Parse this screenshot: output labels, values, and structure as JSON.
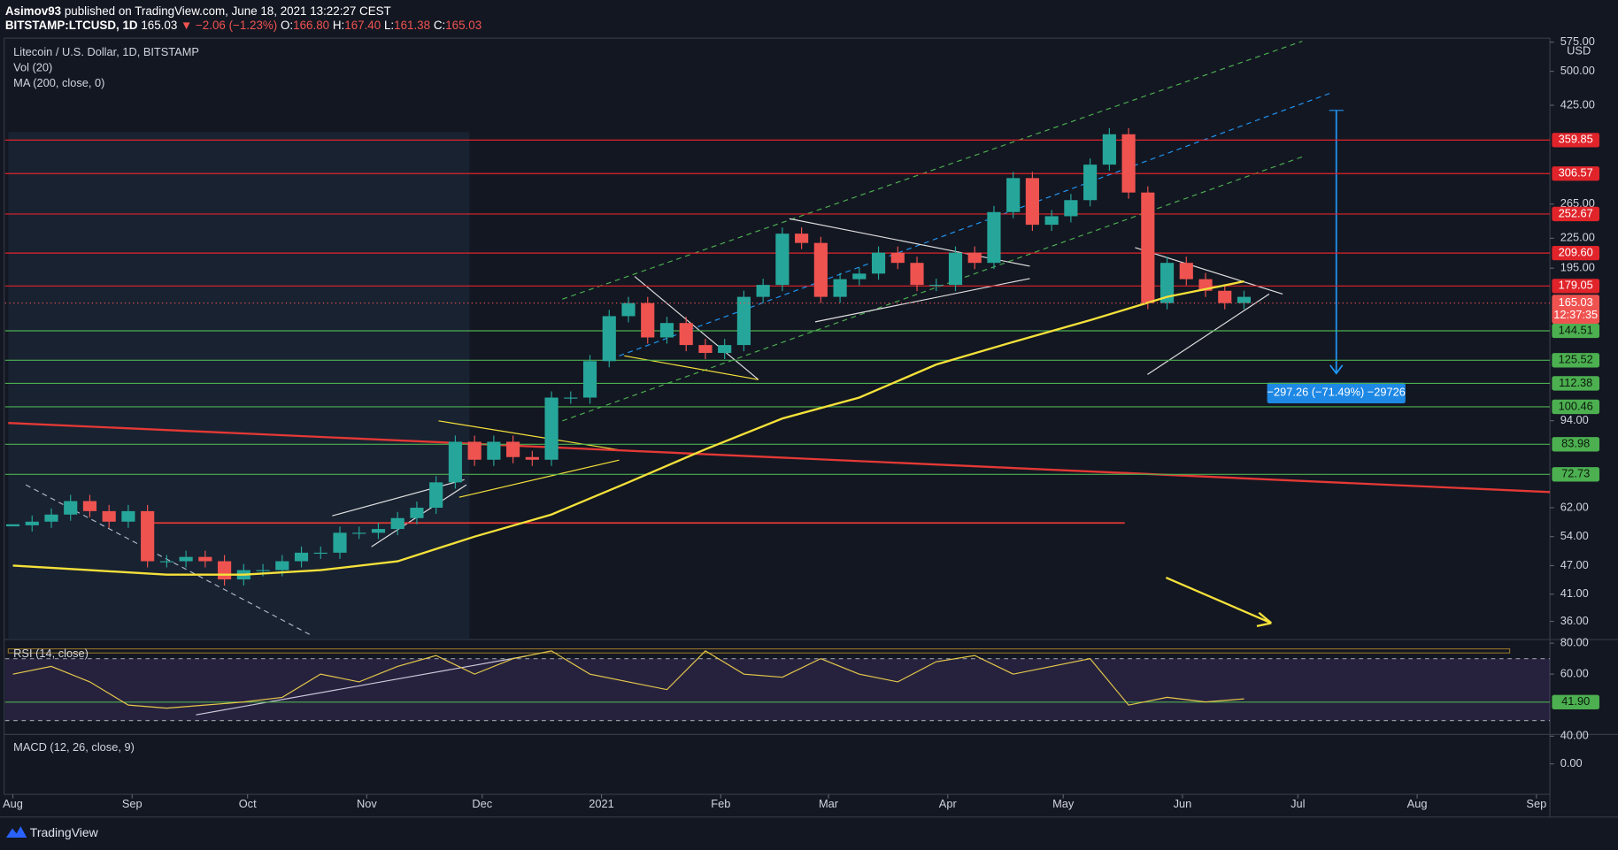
{
  "header": {
    "publisher": "Asimov93",
    "published": "published on TradingView.com, June 18, 2021 13:22:27 CEST",
    "symbol": "BITSTAMP:LTCUSD, 1D",
    "last": "165.03",
    "change": "▼ −2.06 (−1.23%)",
    "open_label": "O:",
    "open": "166.80",
    "high_label": "H:",
    "high": "167.40",
    "low_label": "L:",
    "low": "161.38",
    "close_label": "C:",
    "close": "165.03"
  },
  "chart_data": [
    {
      "type": "candlestick",
      "title": "Litecoin / U.S. Dollar, 1D, BITSTAMP",
      "subtitle": "Vol (20)",
      "currency": "USD",
      "log_scale": true,
      "up_color": "#26a69a",
      "down_color": "#ef5350",
      "x": [
        0,
        5,
        10,
        15,
        20,
        25,
        30,
        35,
        40,
        45,
        50,
        55,
        60,
        65,
        70,
        75,
        80,
        85,
        90,
        95,
        100,
        105,
        110,
        115,
        120,
        125,
        130,
        135,
        140,
        145,
        150,
        155,
        160,
        165,
        170,
        175,
        180,
        185,
        190,
        195,
        200,
        205,
        210,
        215,
        220,
        225,
        230,
        235,
        240,
        245,
        250,
        255,
        260,
        265,
        270,
        275,
        280,
        285,
        290,
        295,
        300,
        305,
        310,
        315,
        320
      ],
      "values": [
        57,
        58,
        60,
        64,
        61,
        58,
        61,
        48,
        48,
        49,
        48,
        44,
        46,
        46,
        48,
        50,
        50,
        55,
        55,
        56,
        59,
        62,
        70,
        85,
        78,
        85,
        79,
        78,
        105,
        105,
        125,
        155,
        165,
        140,
        150,
        135,
        130,
        135,
        170,
        180,
        230,
        220,
        170,
        185,
        190,
        210,
        200,
        180,
        180,
        210,
        200,
        255,
        300,
        240,
        250,
        270,
        320,
        370,
        280,
        165,
        200,
        185,
        175,
        165,
        170
      ],
      "ma": {
        "name": "MA (200, close, 0)",
        "color": "#f5e13a",
        "x": [
          0,
          20,
          40,
          60,
          80,
          100,
          120,
          140,
          160,
          180,
          200,
          220,
          240,
          260,
          280,
          300,
          320
        ],
        "values": [
          47,
          46,
          45,
          45,
          46,
          48,
          54,
          60,
          70,
          82,
          95,
          105,
          123,
          137,
          152,
          170,
          183
        ]
      },
      "xlim": [
        -2,
        399.5
      ],
      "ylim": [
        33,
        583
      ],
      "xticks": [
        {
          "value": 0,
          "label": "Aug"
        },
        {
          "value": 31,
          "label": "Sep"
        },
        {
          "value": 61,
          "label": "Oct"
        },
        {
          "value": 92,
          "label": "Nov"
        },
        {
          "value": 122,
          "label": "Dec"
        },
        {
          "value": 153,
          "label": "2021"
        },
        {
          "value": 184,
          "label": "Feb"
        },
        {
          "value": 212,
          "label": "Mar"
        },
        {
          "value": 243,
          "label": "Apr"
        },
        {
          "value": 273,
          "label": "May"
        },
        {
          "value": 304,
          "label": "Jun"
        },
        {
          "value": 334,
          "label": "Jul"
        },
        {
          "value": 365,
          "label": "Aug"
        },
        {
          "value": 396,
          "label": "Sep"
        }
      ],
      "yticks": [
        {
          "value": 575,
          "label": "575.00"
        },
        {
          "value": 500,
          "label": "500.00"
        },
        {
          "value": 425,
          "label": "425.00"
        },
        {
          "value": 265,
          "label": "265.00"
        },
        {
          "value": 225,
          "label": "225.00"
        },
        {
          "value": 195,
          "label": "195.00"
        },
        {
          "value": 94,
          "label": "94.00"
        },
        {
          "value": 62,
          "label": "62.00"
        },
        {
          "value": 54,
          "label": "54.00"
        },
        {
          "value": 47,
          "label": "47.00"
        },
        {
          "value": 41,
          "label": "41.00"
        },
        {
          "value": 36,
          "label": "36.00"
        }
      ],
      "levels": [
        {
          "value": 359.85,
          "label": "359.85",
          "color": "#e0242a"
        },
        {
          "value": 306.57,
          "label": "306.57",
          "color": "#e0242a"
        },
        {
          "value": 252.67,
          "label": "252.67",
          "color": "#e0242a"
        },
        {
          "value": 209.6,
          "label": "209.60",
          "color": "#e0242a"
        },
        {
          "value": 179.05,
          "label": "179.05",
          "color": "#e0242a"
        },
        {
          "value": 144.51,
          "label": "144.51",
          "color": "#4caf50"
        },
        {
          "value": 125.52,
          "label": "125.52",
          "color": "#4caf50"
        },
        {
          "value": 112.38,
          "label": "112.38",
          "color": "#4caf50"
        },
        {
          "value": 100.46,
          "label": "100.46",
          "color": "#4caf50"
        },
        {
          "value": 83.98,
          "label": "83.98",
          "color": "#4caf50"
        },
        {
          "value": 72.73,
          "label": "72.73",
          "color": "#4caf50"
        }
      ],
      "last_price": {
        "value": 165.03,
        "label": "165.03",
        "countdown": "12:37:35",
        "color": "#ef5350"
      },
      "measure": "−297.26 (−71.49%) −29726"
    },
    {
      "type": "line",
      "title": "RSI (14, close)",
      "color": "#e6c84a",
      "x": [
        0,
        10,
        20,
        30,
        40,
        50,
        60,
        70,
        80,
        90,
        100,
        110,
        120,
        130,
        140,
        150,
        160,
        170,
        180,
        190,
        200,
        210,
        220,
        230,
        240,
        250,
        260,
        270,
        280,
        290,
        300,
        310,
        320
      ],
      "values": [
        60,
        65,
        55,
        40,
        38,
        40,
        42,
        45,
        60,
        55,
        65,
        72,
        60,
        70,
        75,
        60,
        55,
        50,
        75,
        60,
        58,
        70,
        60,
        55,
        68,
        72,
        60,
        65,
        70,
        40,
        45,
        42,
        44
      ],
      "ylim": [
        21,
        81
      ],
      "yticks": [
        {
          "value": 80,
          "label": "80.00"
        },
        {
          "value": 60,
          "label": "60.00"
        }
      ],
      "bands": [
        70,
        30
      ],
      "level": {
        "value": 41.9,
        "label": "41.90",
        "color": "#4caf50"
      }
    },
    {
      "type": "indicator",
      "title": "MACD (12, 26, close, 9)",
      "ylim": [
        -41,
        41
      ],
      "yticks": [
        {
          "value": 40,
          "label": "40.00"
        },
        {
          "value": 0,
          "label": "0.00"
        }
      ]
    }
  ],
  "footer": {
    "brand": "TradingView"
  }
}
